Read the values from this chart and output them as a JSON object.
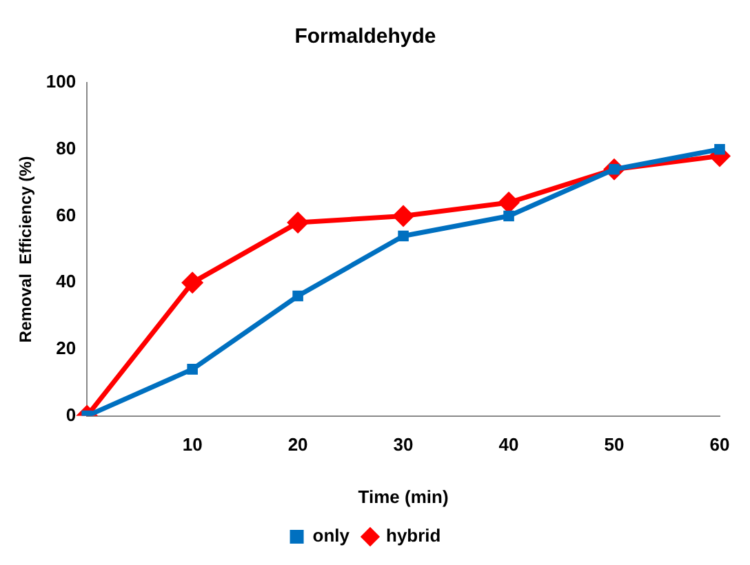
{
  "chart_data": {
    "type": "line",
    "title": "Formaldehyde",
    "xlabel": "Time (min)",
    "ylabel": "Removal  Efficiency (%)",
    "categories": [
      null,
      "10",
      "20",
      "30",
      "40",
      "50",
      "60"
    ],
    "series": [
      {
        "name": "only",
        "color": "#0070c0",
        "marker": "square",
        "values": [
          0,
          14,
          36,
          54,
          60,
          74,
          80
        ]
      },
      {
        "name": "hybrid",
        "color": "#ff0000",
        "marker": "diamond",
        "values": [
          0,
          40,
          58,
          60,
          64,
          74,
          78
        ]
      }
    ],
    "ylim": [
      0,
      100
    ],
    "yticks": [
      0,
      20,
      40,
      60,
      80,
      100
    ],
    "grid": false,
    "legend": "bottom",
    "line_style": "solid"
  }
}
